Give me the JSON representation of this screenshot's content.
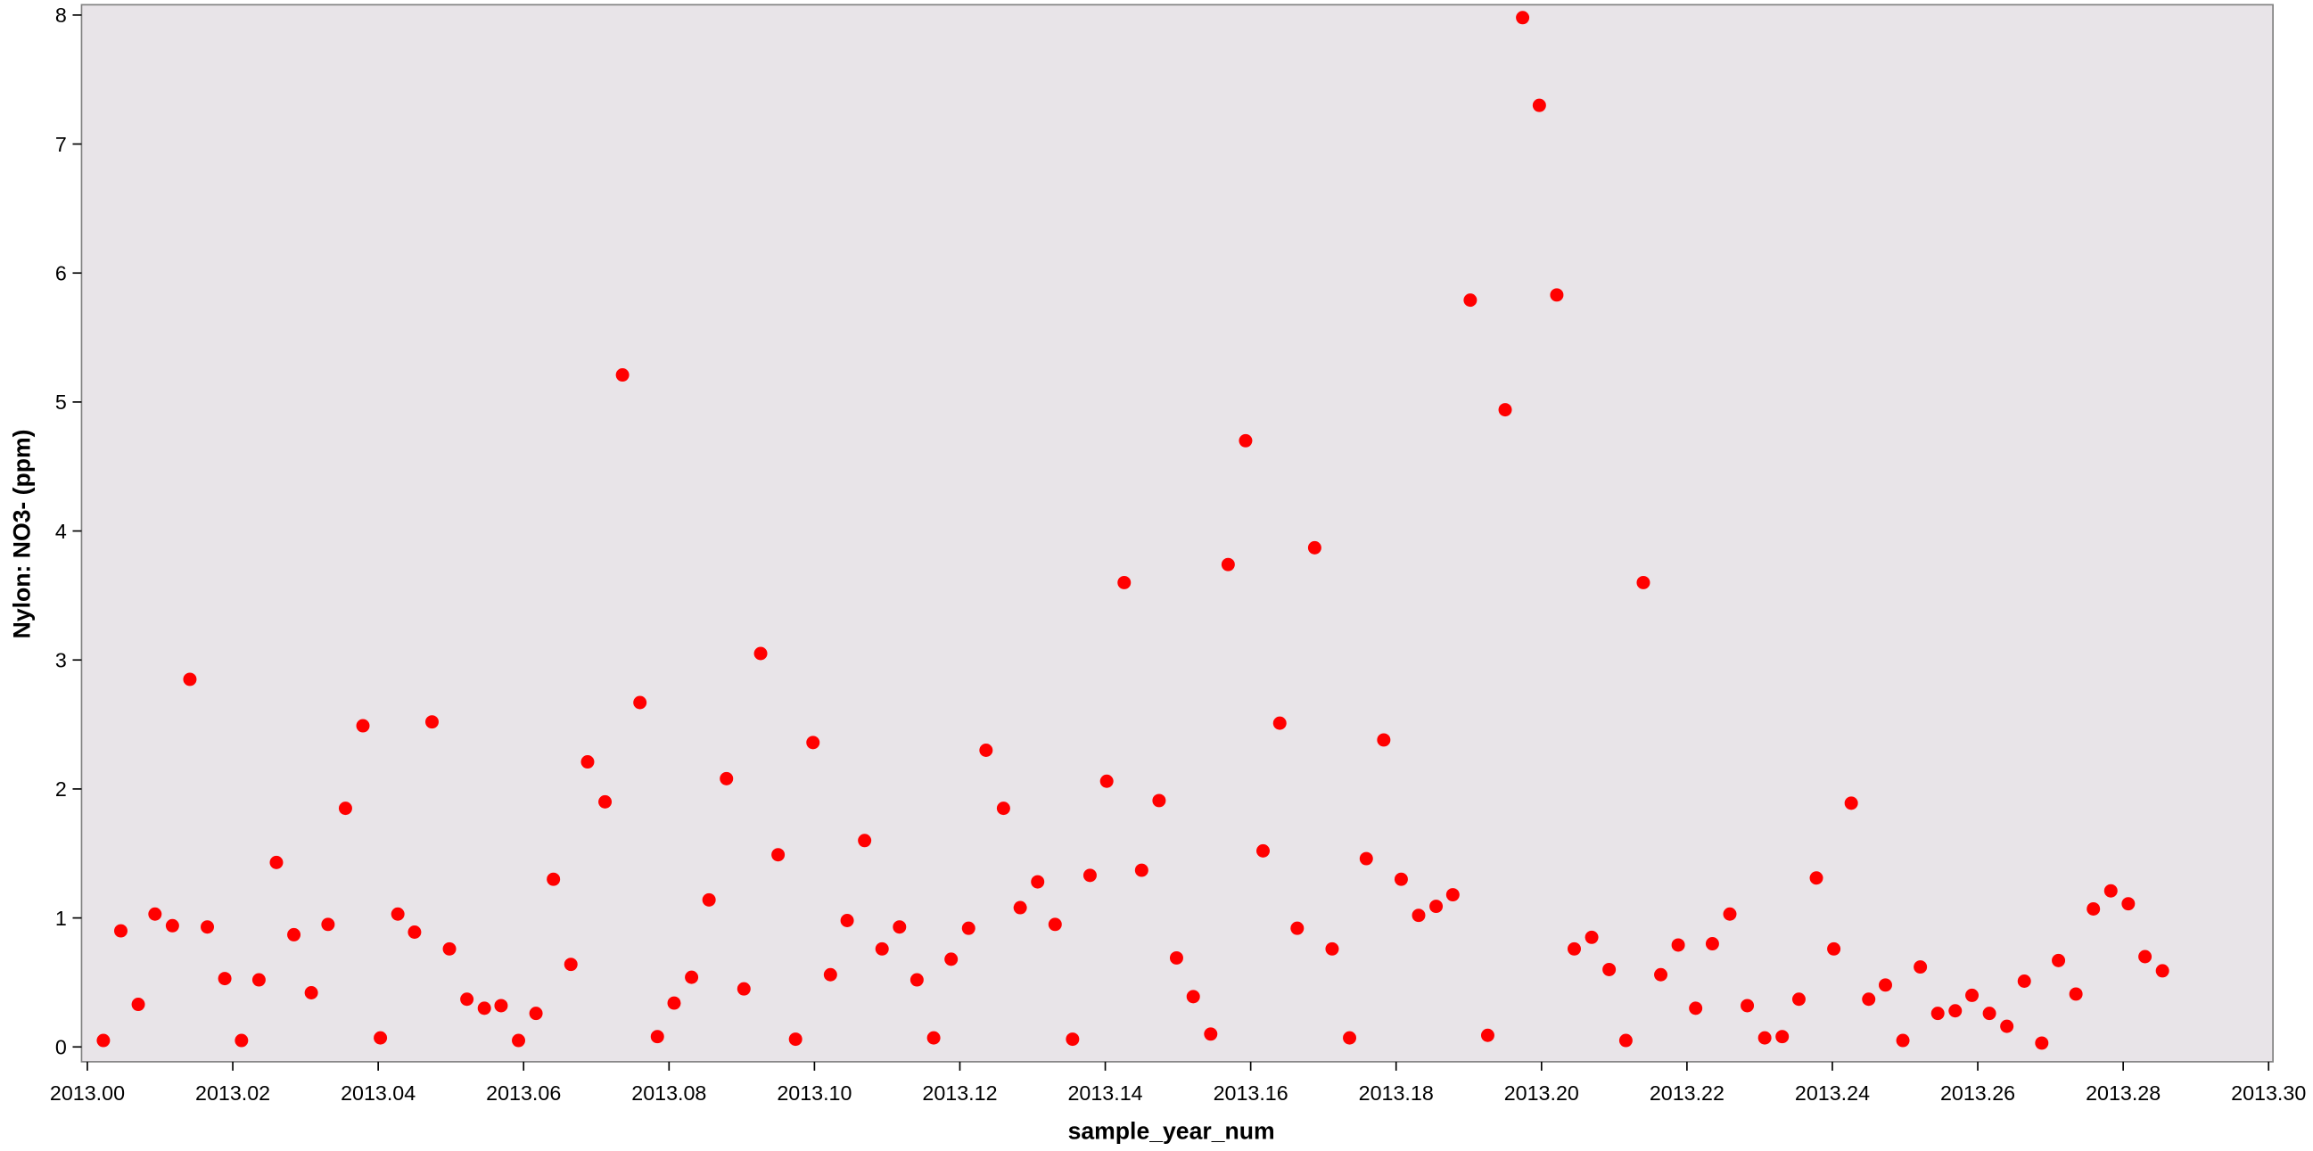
{
  "chart_data": {
    "type": "scatter",
    "x_label": "sample_year_num",
    "y_label": "Nylon: NO3- (ppm)",
    "color": "#ff0000",
    "background": "#e8e4e8",
    "xlim": [
      2012.9992,
      2013.3006
    ],
    "ylim": [
      -0.115,
      8.08
    ],
    "xticks": [
      {
        "value": 2013.0,
        "label": "2013.00"
      },
      {
        "value": 2013.02,
        "label": "2013.02"
      },
      {
        "value": 2013.04,
        "label": "2013.04"
      },
      {
        "value": 2013.06,
        "label": "2013.06"
      },
      {
        "value": 2013.08,
        "label": "2013.08"
      },
      {
        "value": 2013.1,
        "label": "2013.10"
      },
      {
        "value": 2013.12,
        "label": "2013.12"
      },
      {
        "value": 2013.14,
        "label": "2013.14"
      },
      {
        "value": 2013.16,
        "label": "2013.16"
      },
      {
        "value": 2013.18,
        "label": "2013.18"
      },
      {
        "value": 2013.2,
        "label": "2013.20"
      },
      {
        "value": 2013.22,
        "label": "2013.22"
      },
      {
        "value": 2013.24,
        "label": "2013.24"
      },
      {
        "value": 2013.26,
        "label": "2013.26"
      },
      {
        "value": 2013.28,
        "label": "2013.28"
      },
      {
        "value": 2013.3,
        "label": "2013.30"
      }
    ],
    "yticks": [
      0,
      1,
      2,
      3,
      4,
      5,
      6,
      7,
      8
    ],
    "x": [
      2013.0022,
      2013.0046,
      2013.007,
      2013.0093,
      2013.0117,
      2013.0141,
      2013.0165,
      2013.0189,
      2013.0212,
      2013.0236,
      2013.026,
      2013.0284,
      2013.0308,
      2013.0331,
      2013.0355,
      2013.0379,
      2013.0403,
      2013.0427,
      2013.045,
      2013.0474,
      2013.0498,
      2013.0522,
      2013.0546,
      2013.0569,
      2013.0593,
      2013.0617,
      2013.0641,
      2013.0665,
      2013.0688,
      2013.0712,
      2013.0736,
      2013.076,
      2013.0784,
      2013.0807,
      2013.0831,
      2013.0855,
      2013.0879,
      2013.0903,
      2013.0926,
      2013.095,
      2013.0974,
      2013.0998,
      2013.1022,
      2013.1045,
      2013.1069,
      2013.1093,
      2013.1117,
      2013.1141,
      2013.1164,
      2013.1188,
      2013.1212,
      2013.1236,
      2013.126,
      2013.1283,
      2013.1307,
      2013.1331,
      2013.1355,
      2013.1379,
      2013.1402,
      2013.1426,
      2013.145,
      2013.1474,
      2013.1498,
      2013.1521,
      2013.1545,
      2013.1569,
      2013.1593,
      2013.1617,
      2013.164,
      2013.1664,
      2013.1688,
      2013.1712,
      2013.1736,
      2013.1759,
      2013.1783,
      2013.1807,
      2013.1831,
      2013.1855,
      2013.1878,
      2013.1902,
      2013.1926,
      2013.195,
      2013.1974,
      2013.1997,
      2013.2021,
      2013.2045,
      2013.2069,
      2013.2093,
      2013.2116,
      2013.214,
      2013.2164,
      2013.2188,
      2013.2212,
      2013.2235,
      2013.2259,
      2013.2283,
      2013.2307,
      2013.2331,
      2013.2354,
      2013.2378,
      2013.2402,
      2013.2426,
      2013.245,
      2013.2473,
      2013.2497,
      2013.2521,
      2013.2545,
      2013.2569,
      2013.2592,
      2013.2616,
      2013.264,
      2013.2664,
      2013.2688,
      2013.2711,
      2013.2735,
      2013.2759,
      2013.2783,
      2013.2807,
      2013.283,
      2013.2854
    ],
    "values": [
      0.05,
      0.9,
      0.33,
      1.03,
      0.94,
      2.85,
      0.93,
      0.53,
      0.05,
      0.52,
      1.43,
      0.87,
      0.42,
      0.95,
      1.85,
      2.49,
      0.07,
      1.03,
      0.89,
      2.52,
      0.76,
      0.37,
      0.3,
      0.32,
      0.05,
      0.26,
      1.3,
      0.64,
      2.21,
      1.9,
      5.21,
      2.67,
      0.08,
      0.34,
      0.54,
      1.14,
      2.08,
      0.45,
      3.05,
      1.49,
      0.06,
      2.36,
      0.56,
      0.98,
      1.6,
      0.76,
      0.93,
      0.52,
      0.07,
      0.68,
      0.92,
      2.3,
      1.85,
      1.08,
      1.28,
      0.95,
      0.06,
      1.33,
      2.06,
      3.6,
      1.37,
      1.91,
      0.69,
      0.39,
      0.1,
      3.74,
      4.7,
      1.52,
      2.51,
      0.92,
      3.87,
      0.76,
      0.07,
      1.46,
      2.38,
      1.3,
      1.02,
      1.09,
      1.18,
      5.79,
      0.09,
      4.94,
      7.98,
      7.3,
      5.83,
      0.76,
      0.85,
      0.6,
      0.05,
      3.6,
      0.56,
      0.79,
      0.3,
      0.8,
      1.03,
      0.32,
      0.07,
      0.08,
      0.37,
      1.31,
      0.76,
      1.89,
      0.37,
      0.48,
      0.05,
      0.62,
      0.26,
      0.28,
      0.4,
      0.26,
      0.16,
      0.51,
      0.03,
      0.67,
      0.41,
      1.07,
      1.21,
      1.11,
      0.7,
      0.59
    ]
  }
}
